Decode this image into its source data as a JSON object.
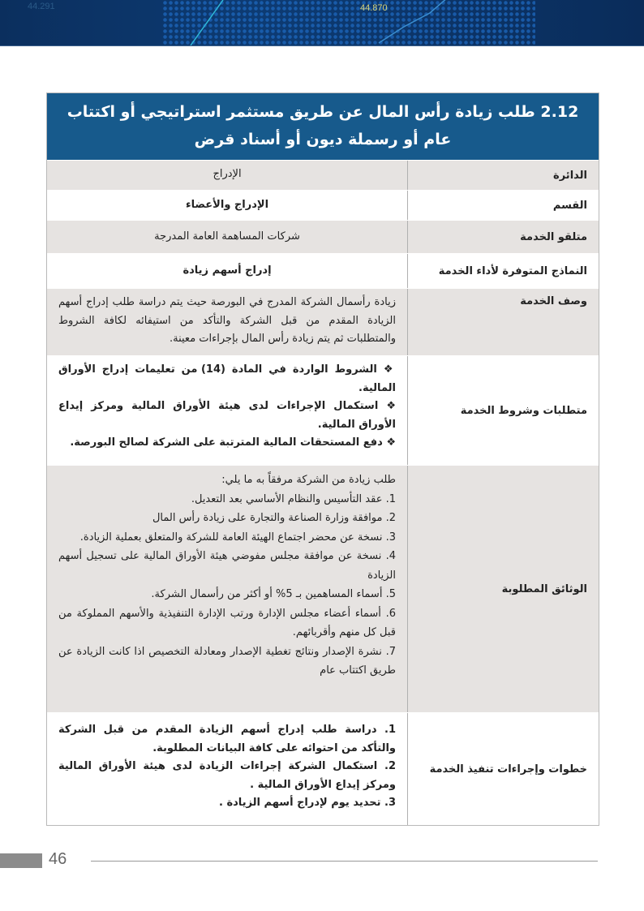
{
  "banner": {
    "left_number": "44.291",
    "right_number": "44.870"
  },
  "title": "2.12  طلب زيادة رأس المال عن طريق مستثمر استراتيجي أو اكتتاب عام أو رسملة ديون أو أسناد قرض",
  "rows": [
    {
      "label": "الدائرة",
      "value": "الإدراج"
    },
    {
      "label": "القسم",
      "value": "الإدراج والأعضاء"
    },
    {
      "label": "متلقو الخدمة",
      "value": "شركات المساهمة العامة المدرجة"
    },
    {
      "label": "النماذج المتوفرة لأداء الخدمة",
      "value": "إدراج أسهم زيادة"
    },
    {
      "label": "وصف الخدمة",
      "value": "زيادة رأسمال الشركة المدرج في البورصة حيث يتم دراسة طلب إدراج أسهم الزيادة المقدم من قبل الشركة والتأكد من استيفائه لكافة الشروط والمتطلبات ثم يتم زيادة رأس المال بإجراءات معينة."
    },
    {
      "label": "متطلبات وشروط الخدمة",
      "items": [
        "❖ الشروط الواردة في المادة (14) من تعليمات إدراج الأوراق المالية.",
        "❖ استكمال الإجراءات لدى هيئة الأوراق المالية ومركز إيداع الأوراق المالية.",
        "❖ دفع المستحقات المالية المترتبة على الشركة لصالح البورصة."
      ]
    },
    {
      "label": "الوثائق المطلوبة",
      "items": [
        "طلب زيادة من الشركة مرفقاً به ما يلي:",
        "1. عقد التأسيس والنظام الأساسي بعد التعديل.",
        "2. موافقة وزارة الصناعة والتجارة على زيادة رأس المال",
        "3. نسخة عن محضر اجتماع الهيئة العامة للشركة والمتعلق بعملية الزيادة.",
        "4. نسخة عن موافقة مجلس مفوضي هيئة الأوراق المالية على تسجيل أسهم الزيادة",
        "5. أسماء المساهمين بـ 5% أو أكثر من رأسمال الشركة.",
        "6. أسماء أعضاء مجلس الإدارة ورتب الإدارة التنفيذية والأسهم المملوكة من قبل كل منهم وأقربائهم.",
        "7. نشرة الإصدار ونتائج تغطية الإصدار ومعادلة التخصيص اذا كانت الزيادة عن طريق اكتتاب عام"
      ]
    },
    {
      "label": "خطوات وإجراءات تنفيذ الخدمة",
      "items": [
        "1. دراسة طلب إدراج أسهم الزيادة المقدم من قبل الشركة والتأكد من احتوائه على كافة البيانات المطلوبة.",
        "2. استكمال الشركة إجراءات الزيادة لدى هيئة الأوراق المالية ومركز إيداع الأوراق المالية .",
        "3. تحديد يوم لإدراج أسهم الزيادة ."
      ]
    }
  ],
  "page_number": "46"
}
